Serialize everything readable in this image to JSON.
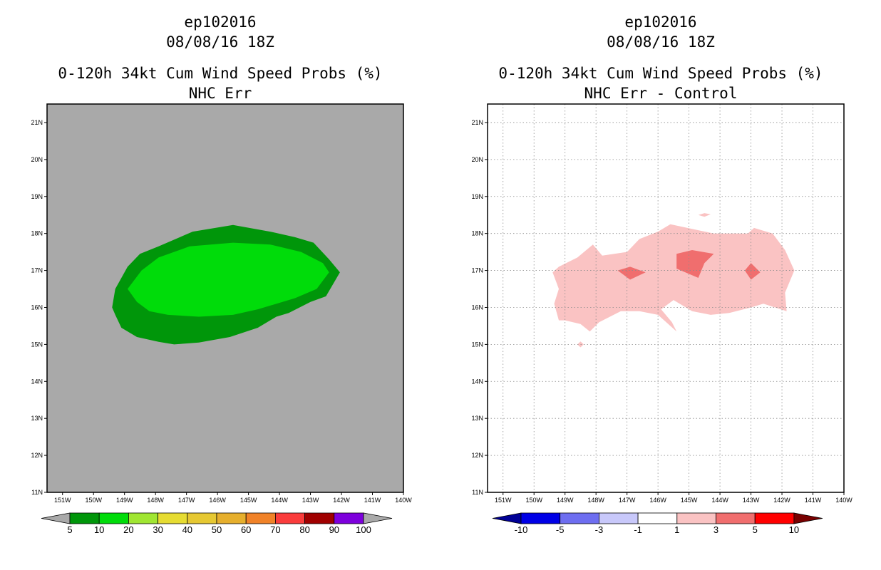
{
  "chart_data": [
    {
      "type": "heatmap",
      "title_lines": [
        "ep102016",
        "08/08/16 18Z",
        "0-120h 34kt Cum Wind Speed Probs (%)",
        "NHC Err"
      ],
      "xlim": [
        -151.5,
        -140
      ],
      "ylim": [
        11,
        21.5
      ],
      "x_ticks": [
        -151,
        -150,
        -149,
        -148,
        -147,
        -146,
        -145,
        -144,
        -143,
        -142,
        -141,
        -140
      ],
      "x_tick_labels": [
        "151W",
        "150W",
        "149W",
        "148W",
        "147W",
        "146W",
        "145W",
        "144W",
        "143W",
        "142W",
        "141W",
        "140W"
      ],
      "y_ticks": [
        11,
        12,
        13,
        14,
        15,
        16,
        17,
        18,
        19,
        20,
        21
      ],
      "y_tick_labels": [
        "11N",
        "12N",
        "13N",
        "14N",
        "15N",
        "16N",
        "17N",
        "18N",
        "19N",
        "20N",
        "21N"
      ],
      "grid": false,
      "background_color": "#a9a9a9",
      "contours": [
        {
          "level": "5-10",
          "color": "#00960a",
          "points": [
            [
              -149.4,
              16.0
            ],
            [
              -149.3,
              16.5
            ],
            [
              -148.9,
              17.1
            ],
            [
              -148.5,
              17.45
            ],
            [
              -147.9,
              17.65
            ],
            [
              -146.8,
              18.05
            ],
            [
              -145.5,
              18.23
            ],
            [
              -144.3,
              18.05
            ],
            [
              -143.5,
              17.9
            ],
            [
              -142.9,
              17.75
            ],
            [
              -142.4,
              17.3
            ],
            [
              -142.05,
              16.95
            ],
            [
              -142.5,
              16.3
            ],
            [
              -143.0,
              16.15
            ],
            [
              -143.7,
              15.85
            ],
            [
              -144.1,
              15.75
            ],
            [
              -144.7,
              15.45
            ],
            [
              -145.6,
              15.2
            ],
            [
              -146.6,
              15.05
            ],
            [
              -147.4,
              15.0
            ],
            [
              -147.9,
              15.07
            ],
            [
              -148.6,
              15.2
            ],
            [
              -149.1,
              15.45
            ],
            [
              -149.3,
              15.8
            ]
          ]
        },
        {
          "level": "10-20",
          "color": "#00dc0a",
          "points": [
            [
              -148.9,
              16.5
            ],
            [
              -148.45,
              17.0
            ],
            [
              -147.9,
              17.35
            ],
            [
              -146.9,
              17.65
            ],
            [
              -145.5,
              17.75
            ],
            [
              -144.3,
              17.7
            ],
            [
              -143.3,
              17.5
            ],
            [
              -142.6,
              17.2
            ],
            [
              -142.4,
              16.95
            ],
            [
              -142.8,
              16.5
            ],
            [
              -143.5,
              16.25
            ],
            [
              -144.7,
              15.95
            ],
            [
              -145.5,
              15.8
            ],
            [
              -146.6,
              15.75
            ],
            [
              -147.6,
              15.8
            ],
            [
              -148.2,
              15.9
            ],
            [
              -148.6,
              16.15
            ]
          ]
        }
      ],
      "colorbar": {
        "labels": [
          "5",
          "10",
          "20",
          "30",
          "40",
          "50",
          "60",
          "70",
          "80",
          "90",
          "100"
        ],
        "colors": [
          "#00960a",
          "#00dc0a",
          "#a0e632",
          "#e6dc32",
          "#e6c832",
          "#e6af2d",
          "#f08228",
          "#fa3c3c",
          "#a00000",
          "#7d00dc"
        ],
        "low_arrow_color": "#a9a9a9",
        "high_arrow_color": "#a9a9a9"
      }
    },
    {
      "type": "heatmap",
      "title_lines": [
        "ep102016",
        "08/08/16 18Z",
        "0-120h 34kt Cum Wind Speed Probs (%)",
        "NHC Err - Control"
      ],
      "xlim": [
        -151.5,
        -140
      ],
      "ylim": [
        11,
        21.5
      ],
      "x_ticks": [
        -151,
        -150,
        -149,
        -148,
        -147,
        -146,
        -145,
        -144,
        -143,
        -142,
        -141,
        -140
      ],
      "x_tick_labels": [
        "151W",
        "150W",
        "149W",
        "148W",
        "147W",
        "146W",
        "145W",
        "144W",
        "143W",
        "142W",
        "141W",
        "140W"
      ],
      "y_ticks": [
        11,
        12,
        13,
        14,
        15,
        16,
        17,
        18,
        19,
        20,
        21
      ],
      "y_tick_labels": [
        "11N",
        "12N",
        "13N",
        "14N",
        "15N",
        "16N",
        "17N",
        "18N",
        "19N",
        "20N",
        "21N"
      ],
      "grid": true,
      "background_color": "#ffffff",
      "contours": [
        {
          "level": "1-3",
          "color": "#fac3c3",
          "points": [
            [
              -149.4,
              16.95
            ],
            [
              -149.2,
              17.1
            ],
            [
              -148.6,
              17.35
            ],
            [
              -148.1,
              17.7
            ],
            [
              -147.8,
              17.4
            ],
            [
              -147.0,
              17.5
            ],
            [
              -146.6,
              17.85
            ],
            [
              -146.0,
              18.05
            ],
            [
              -145.6,
              18.25
            ],
            [
              -145.05,
              18.15
            ],
            [
              -144.2,
              18.0
            ],
            [
              -143.1,
              18.0
            ],
            [
              -142.9,
              18.15
            ],
            [
              -142.3,
              18.0
            ],
            [
              -141.9,
              17.55
            ],
            [
              -141.6,
              17.0
            ],
            [
              -141.9,
              16.4
            ],
            [
              -141.85,
              15.9
            ],
            [
              -142.6,
              16.1
            ],
            [
              -143.0,
              16.0
            ],
            [
              -143.7,
              15.85
            ],
            [
              -144.3,
              15.8
            ],
            [
              -144.9,
              15.9
            ],
            [
              -145.5,
              16.2
            ],
            [
              -145.9,
              15.95
            ],
            [
              -145.55,
              15.6
            ],
            [
              -145.4,
              15.35
            ],
            [
              -146.0,
              15.8
            ],
            [
              -146.6,
              15.9
            ],
            [
              -147.2,
              15.9
            ],
            [
              -147.9,
              15.6
            ],
            [
              -148.2,
              15.35
            ],
            [
              -148.5,
              15.55
            ],
            [
              -149.0,
              15.65
            ],
            [
              -149.2,
              15.65
            ],
            [
              -149.35,
              16.1
            ],
            [
              -149.2,
              16.5
            ]
          ]
        },
        {
          "level": "1-3",
          "color": "#fac3c3",
          "points": [
            [
              -144.5,
              18.55
            ],
            [
              -144.3,
              18.52
            ],
            [
              -144.5,
              18.45
            ],
            [
              -144.7,
              18.5
            ]
          ]
        },
        {
          "level": "1-3",
          "color": "#fac3c3",
          "points": [
            [
              -148.5,
              15.08
            ],
            [
              -148.4,
              15.0
            ],
            [
              -148.5,
              14.92
            ],
            [
              -148.6,
              15.0
            ]
          ]
        },
        {
          "level": "3-5",
          "color": "#f06e6e",
          "points": [
            [
              -147.3,
              17.0
            ],
            [
              -146.9,
              17.1
            ],
            [
              -146.4,
              16.95
            ],
            [
              -146.9,
              16.75
            ]
          ]
        },
        {
          "level": "3-5",
          "color": "#f06e6e",
          "points": [
            [
              -145.4,
              17.45
            ],
            [
              -144.9,
              17.55
            ],
            [
              -144.2,
              17.45
            ],
            [
              -144.5,
              17.2
            ],
            [
              -144.7,
              16.8
            ],
            [
              -145.4,
              17.05
            ]
          ]
        },
        {
          "level": "3-5",
          "color": "#f06e6e",
          "points": [
            [
              -143.2,
              17.0
            ],
            [
              -143.0,
              17.2
            ],
            [
              -142.7,
              16.95
            ],
            [
              -143.0,
              16.75
            ]
          ]
        }
      ],
      "colorbar": {
        "labels": [
          "-10",
          "-5",
          "-3",
          "-1",
          "1",
          "3",
          "5",
          "10"
        ],
        "colors": [
          "#0000e6",
          "#6e6ef0",
          "#c8c8fa",
          "#ffffff",
          "#fac3c3",
          "#f06e6e",
          "#ff0000"
        ],
        "low_arrow_color": "#000096",
        "high_arrow_color": "#780000"
      }
    }
  ]
}
